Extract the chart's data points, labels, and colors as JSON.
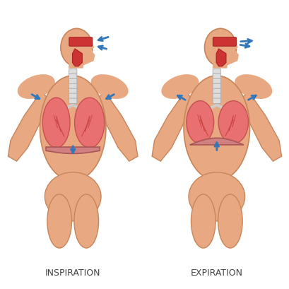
{
  "background_color": "#ffffff",
  "body_color": "#E8A882",
  "body_edge_color": "#C8855A",
  "lung_color": "#E87070",
  "lung_edge_color": "#C85050",
  "airway_color": "#CC3333",
  "airway_edge_color": "#AA2222",
  "trachea_color": "#DDDDDD",
  "diaphragm_color": "#D08080",
  "diaphragm_edge_color": "#AA5555",
  "arrow_color": "#3377BB",
  "label_inspiration": "INSPIRATION",
  "label_expiration": "EXPIRATION",
  "label_fontsize": 9,
  "label_color": "#444444"
}
